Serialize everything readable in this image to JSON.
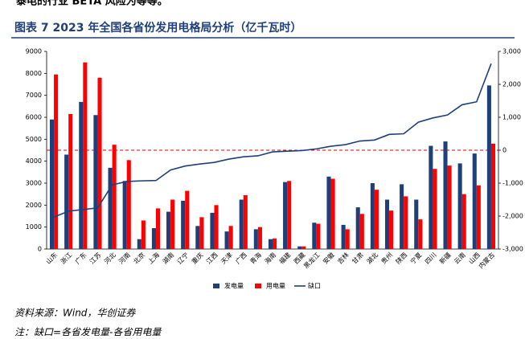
{
  "top_text": "泰电的行业 BETA 风险为等等。",
  "chart_data": {
    "type": "bar-line",
    "title": "图表 7   2023 年全国各省份发用电格局分析（亿千瓦时）",
    "categories": [
      "山东",
      "浙江",
      "广东",
      "江苏",
      "河北",
      "河南",
      "北京",
      "上海",
      "湖南",
      "辽宁",
      "重庆",
      "江西",
      "天津",
      "广西",
      "青海",
      "海南",
      "福建",
      "西藏",
      "黑龙江",
      "安徽",
      "吉林",
      "甘肃",
      "湖北",
      "贵州",
      "陕西",
      "宁夏",
      "四川",
      "新疆",
      "云南",
      "山西",
      "内蒙古"
    ],
    "series": [
      {
        "name": "发电量",
        "color": "#1f3f7a",
        "values": [
          5900,
          4300,
          6700,
          6100,
          3700,
          3100,
          450,
          950,
          1700,
          2200,
          1050,
          1650,
          800,
          2250,
          900,
          450,
          3050,
          120,
          1200,
          3300,
          1100,
          1900,
          3000,
          2250,
          2950,
          2250,
          4700,
          4900,
          3900,
          4350,
          7450
        ]
      },
      {
        "name": "用电量",
        "color": "#ff0000",
        "values": [
          7950,
          6150,
          8500,
          7800,
          4750,
          4050,
          1300,
          1850,
          2250,
          2650,
          1450,
          2000,
          1050,
          2450,
          1000,
          480,
          3100,
          120,
          1150,
          3200,
          900,
          1600,
          2700,
          1750,
          2400,
          1350,
          3650,
          3800,
          2500,
          2900,
          4800
        ]
      },
      {
        "name": "缺口",
        "color": "#1f3f7a",
        "axis": "y2",
        "values": [
          -2030,
          -1850,
          -1800,
          -1750,
          -1050,
          -950,
          -930,
          -920,
          -600,
          -480,
          -420,
          -370,
          -270,
          -200,
          -170,
          -50,
          -30,
          -10,
          40,
          120,
          170,
          280,
          310,
          480,
          500,
          850,
          980,
          1070,
          1380,
          1470,
          2630
        ]
      }
    ],
    "ylim": [
      0,
      9000
    ],
    "yticks": [
      0,
      1000,
      2000,
      3000,
      4000,
      5000,
      6000,
      7000,
      8000,
      9000
    ],
    "y2lim": [
      -3000,
      3000
    ],
    "y2ticks": [
      {
        "value": 3000,
        "label": "3,000"
      },
      {
        "value": 2000,
        "label": "2,000"
      },
      {
        "value": 1000,
        "label": "1,000"
      },
      0,
      {
        "value": -1000,
        "label": "-1,000"
      },
      {
        "value": -2000,
        "label": "-2,000"
      },
      {
        "value": -3000,
        "label": "-3,000"
      }
    ],
    "reference_line_color": "#e00000",
    "legend": "bottom"
  },
  "source": "资料来源：Wind，华创证券",
  "note": "注：缺口=各省发电量-各省用电量"
}
